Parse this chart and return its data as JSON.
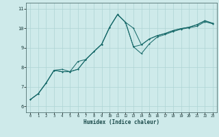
{
  "title": "",
  "xlabel": "Humidex (Indice chaleur)",
  "bg_color": "#ceeaea",
  "line_color": "#1a6b6b",
  "grid_color": "#aed4d4",
  "xlim": [
    -0.5,
    23.5
  ],
  "ylim": [
    5.7,
    11.3
  ],
  "xticks": [
    0,
    1,
    2,
    3,
    4,
    5,
    6,
    7,
    8,
    9,
    10,
    11,
    12,
    13,
    14,
    15,
    16,
    17,
    18,
    19,
    20,
    21,
    22,
    23
  ],
  "yticks": [
    6,
    7,
    8,
    9,
    10,
    11
  ],
  "line1_x": [
    0,
    1,
    2,
    3,
    4,
    5,
    6,
    7,
    8,
    9,
    10,
    11,
    12,
    13,
    14,
    15,
    16,
    17,
    18,
    19,
    20,
    21,
    22,
    23
  ],
  "line1_y": [
    6.35,
    6.65,
    7.2,
    7.85,
    7.9,
    7.78,
    7.9,
    8.4,
    8.8,
    9.18,
    10.05,
    10.7,
    10.3,
    10.0,
    9.15,
    9.45,
    9.62,
    9.73,
    9.88,
    9.98,
    10.05,
    10.18,
    10.38,
    10.25
  ],
  "line2_x": [
    0,
    1,
    2,
    3,
    4,
    5,
    6,
    7,
    8,
    9,
    10,
    11,
    12,
    13,
    14,
    15,
    16,
    17,
    18,
    19,
    20,
    21,
    22,
    23
  ],
  "line2_y": [
    6.35,
    6.65,
    7.2,
    7.85,
    7.78,
    7.78,
    8.3,
    8.4,
    8.8,
    9.18,
    10.05,
    10.7,
    10.3,
    9.05,
    8.7,
    9.2,
    9.55,
    9.68,
    9.83,
    9.95,
    10.02,
    10.1,
    10.33,
    10.22
  ],
  "line3_x": [
    0,
    1,
    2,
    3,
    4,
    5,
    6,
    7,
    8,
    9,
    10,
    11,
    12,
    13,
    14,
    15,
    16,
    17,
    18,
    19,
    20,
    21,
    22,
    23
  ],
  "line3_y": [
    6.35,
    6.65,
    7.2,
    7.85,
    7.78,
    7.78,
    7.9,
    8.4,
    8.8,
    9.18,
    10.05,
    10.7,
    10.3,
    9.05,
    9.15,
    9.45,
    9.62,
    9.73,
    9.88,
    9.98,
    10.05,
    10.18,
    10.38,
    10.25
  ]
}
